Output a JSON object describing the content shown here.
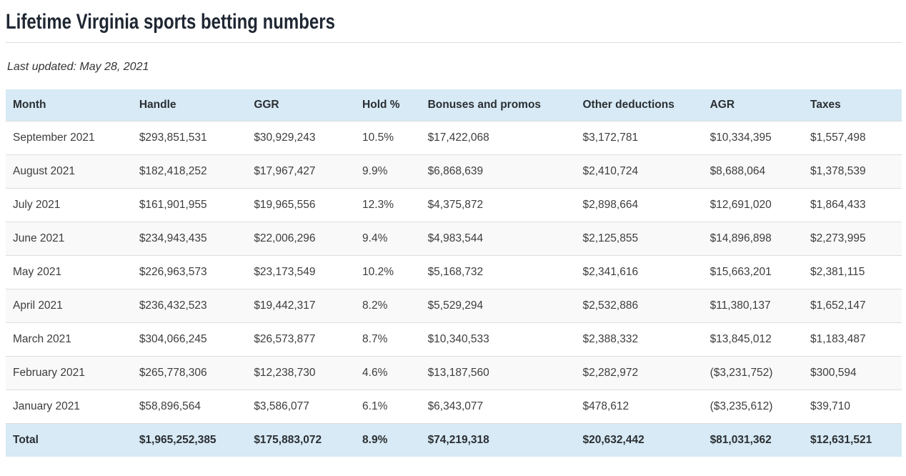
{
  "page": {
    "title": "Lifetime Virginia sports betting numbers",
    "last_updated": "Last updated: May 28, 2021"
  },
  "colors": {
    "header_bg": "#d7eaf5",
    "total_row_bg": "#d7eaf5",
    "row_alt_bg": "#f9f9f9",
    "row_border": "#dddddd",
    "title_color": "#1f2733",
    "body_text": "#3d3d3d"
  },
  "table": {
    "columns": [
      "Month",
      "Handle",
      "GGR",
      "Hold %",
      "Bonuses and promos",
      "Other deductions",
      "AGR",
      "Taxes"
    ],
    "rows": [
      [
        "September 2021",
        "$293,851,531",
        "$30,929,243",
        "10.5%",
        "$17,422,068",
        "$3,172,781",
        "$10,334,395",
        "$1,557,498"
      ],
      [
        "August 2021",
        "$182,418,252",
        "$17,967,427",
        "9.9%",
        "$6,868,639",
        "$2,410,724",
        "$8,688,064",
        "$1,378,539"
      ],
      [
        "July 2021",
        "$161,901,955",
        "$19,965,556",
        "12.3%",
        "$4,375,872",
        "$2,898,664",
        "$12,691,020",
        "$1,864,433"
      ],
      [
        "June 2021",
        "$234,943,435",
        "$22,006,296",
        "9.4%",
        "$4,983,544",
        "$2,125,855",
        "$14,896,898",
        "$2,273,995"
      ],
      [
        "May 2021",
        "$226,963,573",
        "$23,173,549",
        "10.2%",
        "$5,168,732",
        "$2,341,616",
        "$15,663,201",
        "$2,381,115"
      ],
      [
        "April 2021",
        "$236,432,523",
        "$19,442,317",
        "8.2%",
        "$5,529,294",
        "$2,532,886",
        "$11,380,137",
        "$1,652,147"
      ],
      [
        "March 2021",
        "$304,066,245",
        "$26,573,877",
        "8.7%",
        "$10,340,533",
        "$2,388,332",
        "$13,845,012",
        "$1,183,487"
      ],
      [
        "February 2021",
        "$265,778,306",
        "$12,238,730",
        "4.6%",
        "$13,187,560",
        "$2,282,972",
        "($3,231,752)",
        "$300,594"
      ],
      [
        "January 2021",
        "$58,896,564",
        "$3,586,077",
        "6.1%",
        "$6,343,077",
        "$478,612",
        "($3,235,612)",
        "$39,710"
      ]
    ],
    "total_row": [
      "Total",
      "$1,965,252,385",
      "$175,883,072",
      "8.9%",
      "$74,219,318",
      "$20,632,442",
      "$81,031,362",
      "$12,631,521"
    ]
  },
  "chart_data": {
    "type": "table",
    "title": "Lifetime Virginia sports betting numbers",
    "subtitle": "Last updated: May 28, 2021",
    "columns": [
      "Month",
      "Handle",
      "GGR",
      "Hold %",
      "Bonuses and promos",
      "Other deductions",
      "AGR",
      "Taxes"
    ],
    "rows": [
      {
        "month": "September 2021",
        "handle": "$293,851,531",
        "ggr": "$30,929,243",
        "hold_pct": "10.5%",
        "bonuses_and_promos": "$17,422,068",
        "other_deductions": "$3,172,781",
        "agr": "$10,334,395",
        "taxes": "$1,557,498"
      },
      {
        "month": "August 2021",
        "handle": "$182,418,252",
        "ggr": "$17,967,427",
        "hold_pct": "9.9%",
        "bonuses_and_promos": "$6,868,639",
        "other_deductions": "$2,410,724",
        "agr": "$8,688,064",
        "taxes": "$1,378,539"
      },
      {
        "month": "July 2021",
        "handle": "$161,901,955",
        "ggr": "$19,965,556",
        "hold_pct": "12.3%",
        "bonuses_and_promos": "$4,375,872",
        "other_deductions": "$2,898,664",
        "agr": "$12,691,020",
        "taxes": "$1,864,433"
      },
      {
        "month": "June 2021",
        "handle": "$234,943,435",
        "ggr": "$22,006,296",
        "hold_pct": "9.4%",
        "bonuses_and_promos": "$4,983,544",
        "other_deductions": "$2,125,855",
        "agr": "$14,896,898",
        "taxes": "$2,273,995"
      },
      {
        "month": "May 2021",
        "handle": "$226,963,573",
        "ggr": "$23,173,549",
        "hold_pct": "10.2%",
        "bonuses_and_promos": "$5,168,732",
        "other_deductions": "$2,341,616",
        "agr": "$15,663,201",
        "taxes": "$2,381,115"
      },
      {
        "month": "April 2021",
        "handle": "$236,432,523",
        "ggr": "$19,442,317",
        "hold_pct": "8.2%",
        "bonuses_and_promos": "$5,529,294",
        "other_deductions": "$2,532,886",
        "agr": "$11,380,137",
        "taxes": "$1,652,147"
      },
      {
        "month": "March 2021",
        "handle": "$304,066,245",
        "ggr": "$26,573,877",
        "hold_pct": "8.7%",
        "bonuses_and_promos": "$10,340,533",
        "other_deductions": "$2,388,332",
        "agr": "$13,845,012",
        "taxes": "$1,183,487"
      },
      {
        "month": "February 2021",
        "handle": "$265,778,306",
        "ggr": "$12,238,730",
        "hold_pct": "4.6%",
        "bonuses_and_promos": "$13,187,560",
        "other_deductions": "$2,282,972",
        "agr": "($3,231,752)",
        "taxes": "$300,594"
      },
      {
        "month": "January 2021",
        "handle": "$58,896,564",
        "ggr": "$3,586,077",
        "hold_pct": "6.1%",
        "bonuses_and_promos": "$6,343,077",
        "other_deductions": "$478,612",
        "agr": "($3,235,612)",
        "taxes": "$39,710"
      }
    ],
    "total": {
      "month": "Total",
      "handle": "$1,965,252,385",
      "ggr": "$175,883,072",
      "hold_pct": "8.9%",
      "bonuses_and_promos": "$74,219,318",
      "other_deductions": "$20,632,442",
      "agr": "$81,031,362",
      "taxes": "$12,631,521"
    }
  }
}
